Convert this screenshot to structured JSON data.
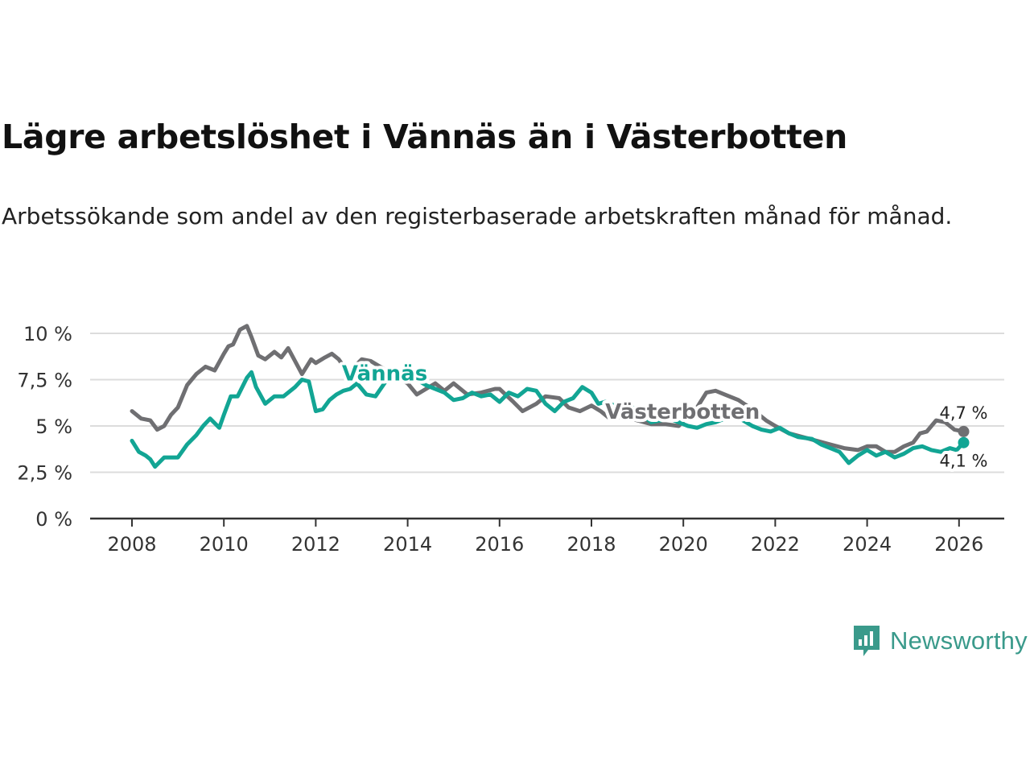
{
  "title": "Lägre arbetslöshet i Vännäs än i Västerbotten",
  "subtitle": "Arbetssökande som andel av den registerbaserade arbetskraften månad för månad.",
  "brand": {
    "name": "Newsworthy",
    "icon": "newsworthy-logo-icon"
  },
  "colors": {
    "vannas": "#12a594",
    "vasterbotten": "#6f6f72",
    "grid": "#dcdcdc",
    "axis": "#333333"
  },
  "chart_data": {
    "type": "line",
    "title": "Lägre arbetslöshet i Vännäs än i Västerbotten",
    "xlabel": "",
    "ylabel": "",
    "xlim": [
      2007.7,
      2027.0
    ],
    "ylim": [
      0,
      10
    ],
    "x_ticks": [
      2008,
      2010,
      2012,
      2014,
      2016,
      2018,
      2020,
      2022,
      2024,
      2026
    ],
    "x_tick_labels": [
      "2008",
      "2010",
      "2012",
      "2014",
      "2016",
      "2018",
      "2020",
      "2022",
      "2024",
      "2026"
    ],
    "y_ticks": [
      0,
      2.5,
      5,
      7.5,
      10
    ],
    "y_tick_labels": [
      "0 %",
      "2,5 %",
      "5 %",
      "7,5 %",
      "10 %"
    ],
    "grid": true,
    "series": [
      {
        "name": "Västerbotten",
        "label": "Västerbotten",
        "end_label": "4,7 %",
        "x": [
          2008.0,
          2008.2,
          2008.4,
          2008.55,
          2008.7,
          2008.85,
          2009.0,
          2009.2,
          2009.4,
          2009.6,
          2009.8,
          2010.0,
          2010.1,
          2010.2,
          2010.35,
          2010.5,
          2010.6,
          2010.75,
          2010.9,
          2011.1,
          2011.25,
          2011.4,
          2011.55,
          2011.7,
          2011.9,
          2012.0,
          2012.2,
          2012.35,
          2012.5,
          2012.7,
          2012.8,
          2013.0,
          2013.2,
          2013.6,
          2014.0,
          2014.2,
          2014.4,
          2014.6,
          2014.8,
          2015.0,
          2015.3,
          2015.6,
          2015.9,
          2016.0,
          2016.3,
          2016.5,
          2016.8,
          2017.0,
          2017.3,
          2017.5,
          2017.75,
          2018.0,
          2018.2,
          2018.4,
          2018.7,
          2019.0,
          2019.3,
          2019.6,
          2019.9,
          2020.0,
          2020.3,
          2020.5,
          2020.7,
          2020.9,
          2021.2,
          2021.5,
          2021.8,
          2022.0,
          2022.3,
          2022.6,
          2022.9,
          2023.2,
          2023.5,
          2023.8,
          2024.0,
          2024.2,
          2024.4,
          2024.6,
          2024.8,
          2025.0,
          2025.15,
          2025.3,
          2025.5,
          2025.7,
          2025.9,
          2026.1
        ],
        "y": [
          5.8,
          5.4,
          5.3,
          4.8,
          5.0,
          5.6,
          6.0,
          7.2,
          7.8,
          8.2,
          8.0,
          8.9,
          9.3,
          9.4,
          10.2,
          10.4,
          9.8,
          8.8,
          8.6,
          9.0,
          8.7,
          9.2,
          8.5,
          7.8,
          8.6,
          8.4,
          8.7,
          8.9,
          8.6,
          7.9,
          8.1,
          8.6,
          8.5,
          7.9,
          7.3,
          6.7,
          7.0,
          7.3,
          6.9,
          7.3,
          6.7,
          6.8,
          7.0,
          7.0,
          6.3,
          5.8,
          6.2,
          6.6,
          6.5,
          6.0,
          5.8,
          6.1,
          5.8,
          5.4,
          5.5,
          5.3,
          5.1,
          5.1,
          5.0,
          5.3,
          6.0,
          6.8,
          6.9,
          6.7,
          6.4,
          5.9,
          5.3,
          5.0,
          4.6,
          4.4,
          4.2,
          4.0,
          3.8,
          3.7,
          3.9,
          3.9,
          3.6,
          3.6,
          3.9,
          4.1,
          4.6,
          4.7,
          5.3,
          5.2,
          4.8,
          4.7
        ]
      },
      {
        "name": "Vännäs",
        "label": "Vännäs",
        "end_label": "4,1 %",
        "x": [
          2008.0,
          2008.15,
          2008.3,
          2008.4,
          2008.5,
          2008.7,
          2008.9,
          2009.0,
          2009.2,
          2009.4,
          2009.55,
          2009.7,
          2009.9,
          2010.0,
          2010.15,
          2010.3,
          2010.5,
          2010.6,
          2010.7,
          2010.9,
          2011.1,
          2011.3,
          2011.55,
          2011.7,
          2011.85,
          2012.0,
          2012.15,
          2012.3,
          2012.45,
          2012.6,
          2012.75,
          2012.9,
          2013.1,
          2013.3,
          2013.55,
          2013.8,
          2014.0,
          2014.2,
          2014.4,
          2014.6,
          2014.8,
          2015.0,
          2015.2,
          2015.4,
          2015.6,
          2015.8,
          2016.0,
          2016.2,
          2016.4,
          2016.6,
          2016.8,
          2017.0,
          2017.2,
          2017.4,
          2017.6,
          2017.8,
          2018.0,
          2018.15,
          2018.3,
          2018.5,
          2018.7,
          2018.9,
          2019.1,
          2019.3,
          2019.5,
          2019.7,
          2019.9,
          2020.1,
          2020.3,
          2020.5,
          2020.7,
          2020.9,
          2021.1,
          2021.3,
          2021.5,
          2021.7,
          2021.9,
          2022.1,
          2022.3,
          2022.5,
          2022.8,
          2023.0,
          2023.2,
          2023.4,
          2023.5,
          2023.6,
          2023.8,
          2024.0,
          2024.2,
          2024.4,
          2024.6,
          2024.8,
          2025.0,
          2025.2,
          2025.4,
          2025.6,
          2025.8,
          2025.95,
          2026.1
        ],
        "y": [
          4.2,
          3.6,
          3.4,
          3.2,
          2.8,
          3.3,
          3.3,
          3.3,
          4.0,
          4.5,
          5.0,
          5.4,
          4.9,
          5.6,
          6.6,
          6.6,
          7.6,
          7.9,
          7.1,
          6.2,
          6.6,
          6.6,
          7.1,
          7.5,
          7.4,
          5.8,
          5.9,
          6.4,
          6.7,
          6.9,
          7.0,
          7.3,
          6.7,
          6.6,
          7.5,
          7.8,
          8.0,
          7.5,
          7.2,
          7.0,
          6.8,
          6.4,
          6.5,
          6.8,
          6.6,
          6.7,
          6.3,
          6.8,
          6.6,
          7.0,
          6.9,
          6.2,
          5.8,
          6.3,
          6.5,
          7.1,
          6.8,
          6.2,
          6.3,
          6.1,
          6.0,
          6.0,
          5.6,
          5.2,
          5.3,
          5.4,
          5.2,
          5.0,
          4.9,
          5.1,
          5.2,
          5.4,
          5.6,
          5.3,
          5.0,
          4.8,
          4.7,
          4.9,
          4.6,
          4.4,
          4.3,
          4.0,
          3.8,
          3.6,
          3.3,
          3.0,
          3.4,
          3.7,
          3.4,
          3.6,
          3.3,
          3.5,
          3.8,
          3.9,
          3.7,
          3.6,
          3.8,
          3.7,
          4.1
        ]
      }
    ]
  }
}
